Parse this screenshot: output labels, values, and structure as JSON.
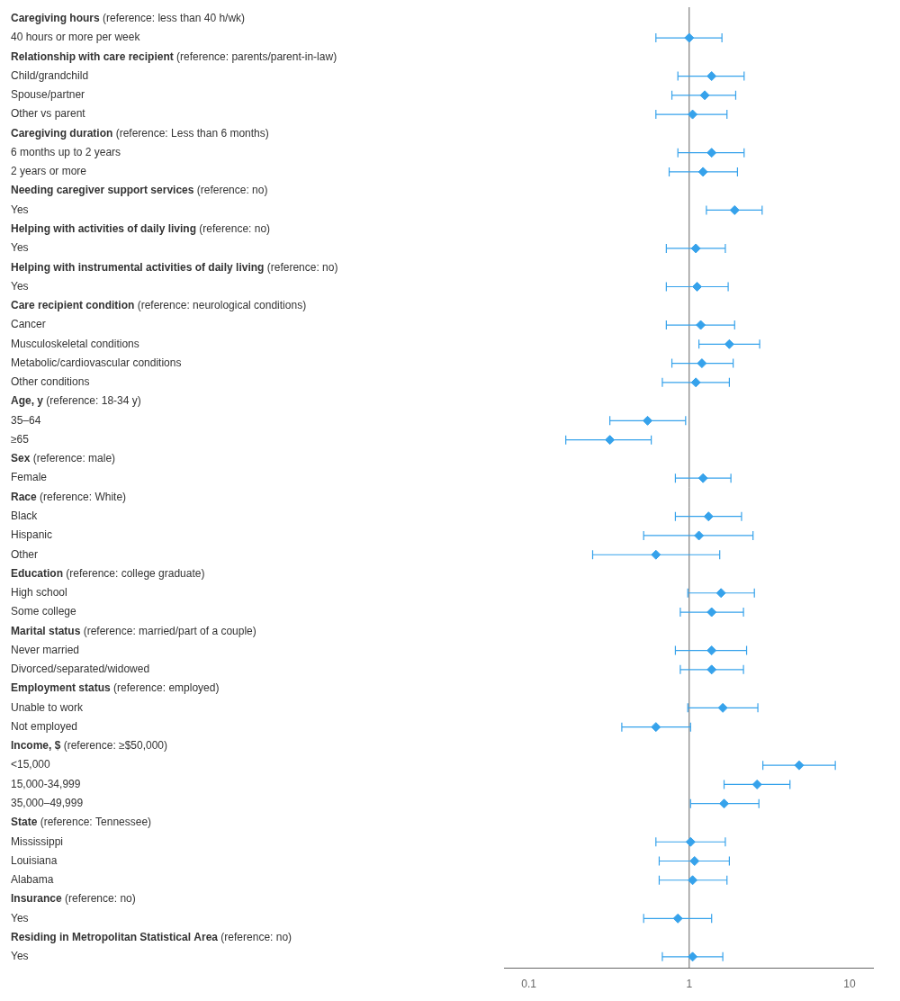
{
  "chart_data": {
    "type": "forest",
    "log": "x",
    "xlim": [
      0.07,
      14.0
    ],
    "xticks": [
      0.1,
      1,
      10
    ],
    "ref_line": 1.0,
    "marker": "diamond",
    "color": "#36a2eb",
    "grid": false,
    "rows": [
      {
        "label": "Caregiving hours",
        "reference": "(reference: less than 40 h/wk)",
        "header": true
      },
      {
        "label": "40 hours or more per week",
        "or": 1.0,
        "ci_low": 0.62,
        "ci_high": 1.6
      },
      {
        "label": "Relationship with care recipient",
        "reference": "(reference: parents/parent-in-law)",
        "header": true
      },
      {
        "label": "Child/grandchild",
        "or": 1.38,
        "ci_low": 0.85,
        "ci_high": 2.2
      },
      {
        "label": "Spouse/partner",
        "or": 1.25,
        "ci_low": 0.78,
        "ci_high": 1.95
      },
      {
        "label": "Other vs parent",
        "or": 1.05,
        "ci_low": 0.62,
        "ci_high": 1.72
      },
      {
        "label": "Caregiving duration",
        "reference": "(reference: Less than 6 months)",
        "header": true
      },
      {
        "label": "6 months up to 2 years",
        "or": 1.38,
        "ci_low": 0.85,
        "ci_high": 2.2
      },
      {
        "label": "2 years or more",
        "or": 1.22,
        "ci_low": 0.75,
        "ci_high": 2.0
      },
      {
        "label": "Needing caregiver support services",
        "reference": "(reference: no)",
        "header": true
      },
      {
        "label": "Yes",
        "or": 1.92,
        "ci_low": 1.28,
        "ci_high": 2.85
      },
      {
        "label": "Helping with activities of daily living",
        "reference": "(reference: no)",
        "header": true
      },
      {
        "label": "Yes",
        "or": 1.1,
        "ci_low": 0.72,
        "ci_high": 1.68
      },
      {
        "label": "Helping with instrumental activities of daily living",
        "reference": "(reference: no)",
        "header": true
      },
      {
        "label": "Yes",
        "or": 1.12,
        "ci_low": 0.72,
        "ci_high": 1.75
      },
      {
        "label": "Care recipient condition",
        "reference": "(reference: neurological conditions)",
        "header": true
      },
      {
        "label": "Cancer",
        "or": 1.18,
        "ci_low": 0.72,
        "ci_high": 1.92
      },
      {
        "label": "Musculoskeletal conditions",
        "or": 1.78,
        "ci_low": 1.15,
        "ci_high": 2.75
      },
      {
        "label": "Metabolic/cardiovascular conditions",
        "or": 1.2,
        "ci_low": 0.78,
        "ci_high": 1.88
      },
      {
        "label": "Other conditions",
        "or": 1.1,
        "ci_low": 0.68,
        "ci_high": 1.78
      },
      {
        "label": "Age, y",
        "reference": "(reference: 18-34 y)",
        "header": true
      },
      {
        "label": "35–64",
        "or": 0.55,
        "ci_low": 0.32,
        "ci_high": 0.95
      },
      {
        "label": "≥65",
        "or": 0.32,
        "ci_low": 0.17,
        "ci_high": 0.58
      },
      {
        "label": "Sex",
        "reference": "(reference: male)",
        "header": true
      },
      {
        "label": "Female",
        "or": 1.22,
        "ci_low": 0.82,
        "ci_high": 1.82
      },
      {
        "label": "Race",
        "reference": "(reference: White)",
        "header": true
      },
      {
        "label": "Black",
        "or": 1.32,
        "ci_low": 0.82,
        "ci_high": 2.12
      },
      {
        "label": "Hispanic",
        "or": 1.15,
        "ci_low": 0.52,
        "ci_high": 2.5
      },
      {
        "label": "Other",
        "or": 0.62,
        "ci_low": 0.25,
        "ci_high": 1.55
      },
      {
        "label": "Education",
        "reference": "(reference: college graduate)",
        "header": true
      },
      {
        "label": "High school",
        "or": 1.58,
        "ci_low": 0.98,
        "ci_high": 2.55
      },
      {
        "label": "Some college",
        "or": 1.38,
        "ci_low": 0.88,
        "ci_high": 2.18
      },
      {
        "label": "Marital status",
        "reference": "(reference: married/part of a couple)",
        "header": true
      },
      {
        "label": "Never married",
        "or": 1.38,
        "ci_low": 0.82,
        "ci_high": 2.28
      },
      {
        "label": "Divorced/separated/widowed",
        "or": 1.38,
        "ci_low": 0.88,
        "ci_high": 2.18
      },
      {
        "label": "Employment status",
        "reference": "(reference: employed)",
        "header": true
      },
      {
        "label": "Unable to work",
        "or": 1.62,
        "ci_low": 0.98,
        "ci_high": 2.68
      },
      {
        "label": "Not employed",
        "or": 0.62,
        "ci_low": 0.38,
        "ci_high": 1.02
      },
      {
        "label": "Income, $",
        "reference": "(reference: ≥$50,000)",
        "header": true
      },
      {
        "label": "<15,000",
        "or": 4.85,
        "ci_low": 2.88,
        "ci_high": 8.15
      },
      {
        "label": "15,000-34,999",
        "or": 2.65,
        "ci_low": 1.65,
        "ci_high": 4.25
      },
      {
        "label": "35,000–49,999",
        "or": 1.65,
        "ci_low": 1.02,
        "ci_high": 2.72
      },
      {
        "label": "State",
        "reference": "(reference: Tennessee)",
        "header": true
      },
      {
        "label": "Mississippi",
        "or": 1.02,
        "ci_low": 0.62,
        "ci_high": 1.68
      },
      {
        "label": "Louisiana",
        "or": 1.08,
        "ci_low": 0.65,
        "ci_high": 1.78
      },
      {
        "label": "Alabama",
        "or": 1.05,
        "ci_low": 0.65,
        "ci_high": 1.72
      },
      {
        "label": "Insurance",
        "reference": "(reference: no)",
        "header": true
      },
      {
        "label": "Yes",
        "or": 0.85,
        "ci_low": 0.52,
        "ci_high": 1.38
      },
      {
        "label": "Residing in Metropolitan Statistical Area",
        "reference": "(reference: no)",
        "header": true
      },
      {
        "label": "Yes",
        "or": 1.05,
        "ci_low": 0.68,
        "ci_high": 1.62
      }
    ]
  }
}
